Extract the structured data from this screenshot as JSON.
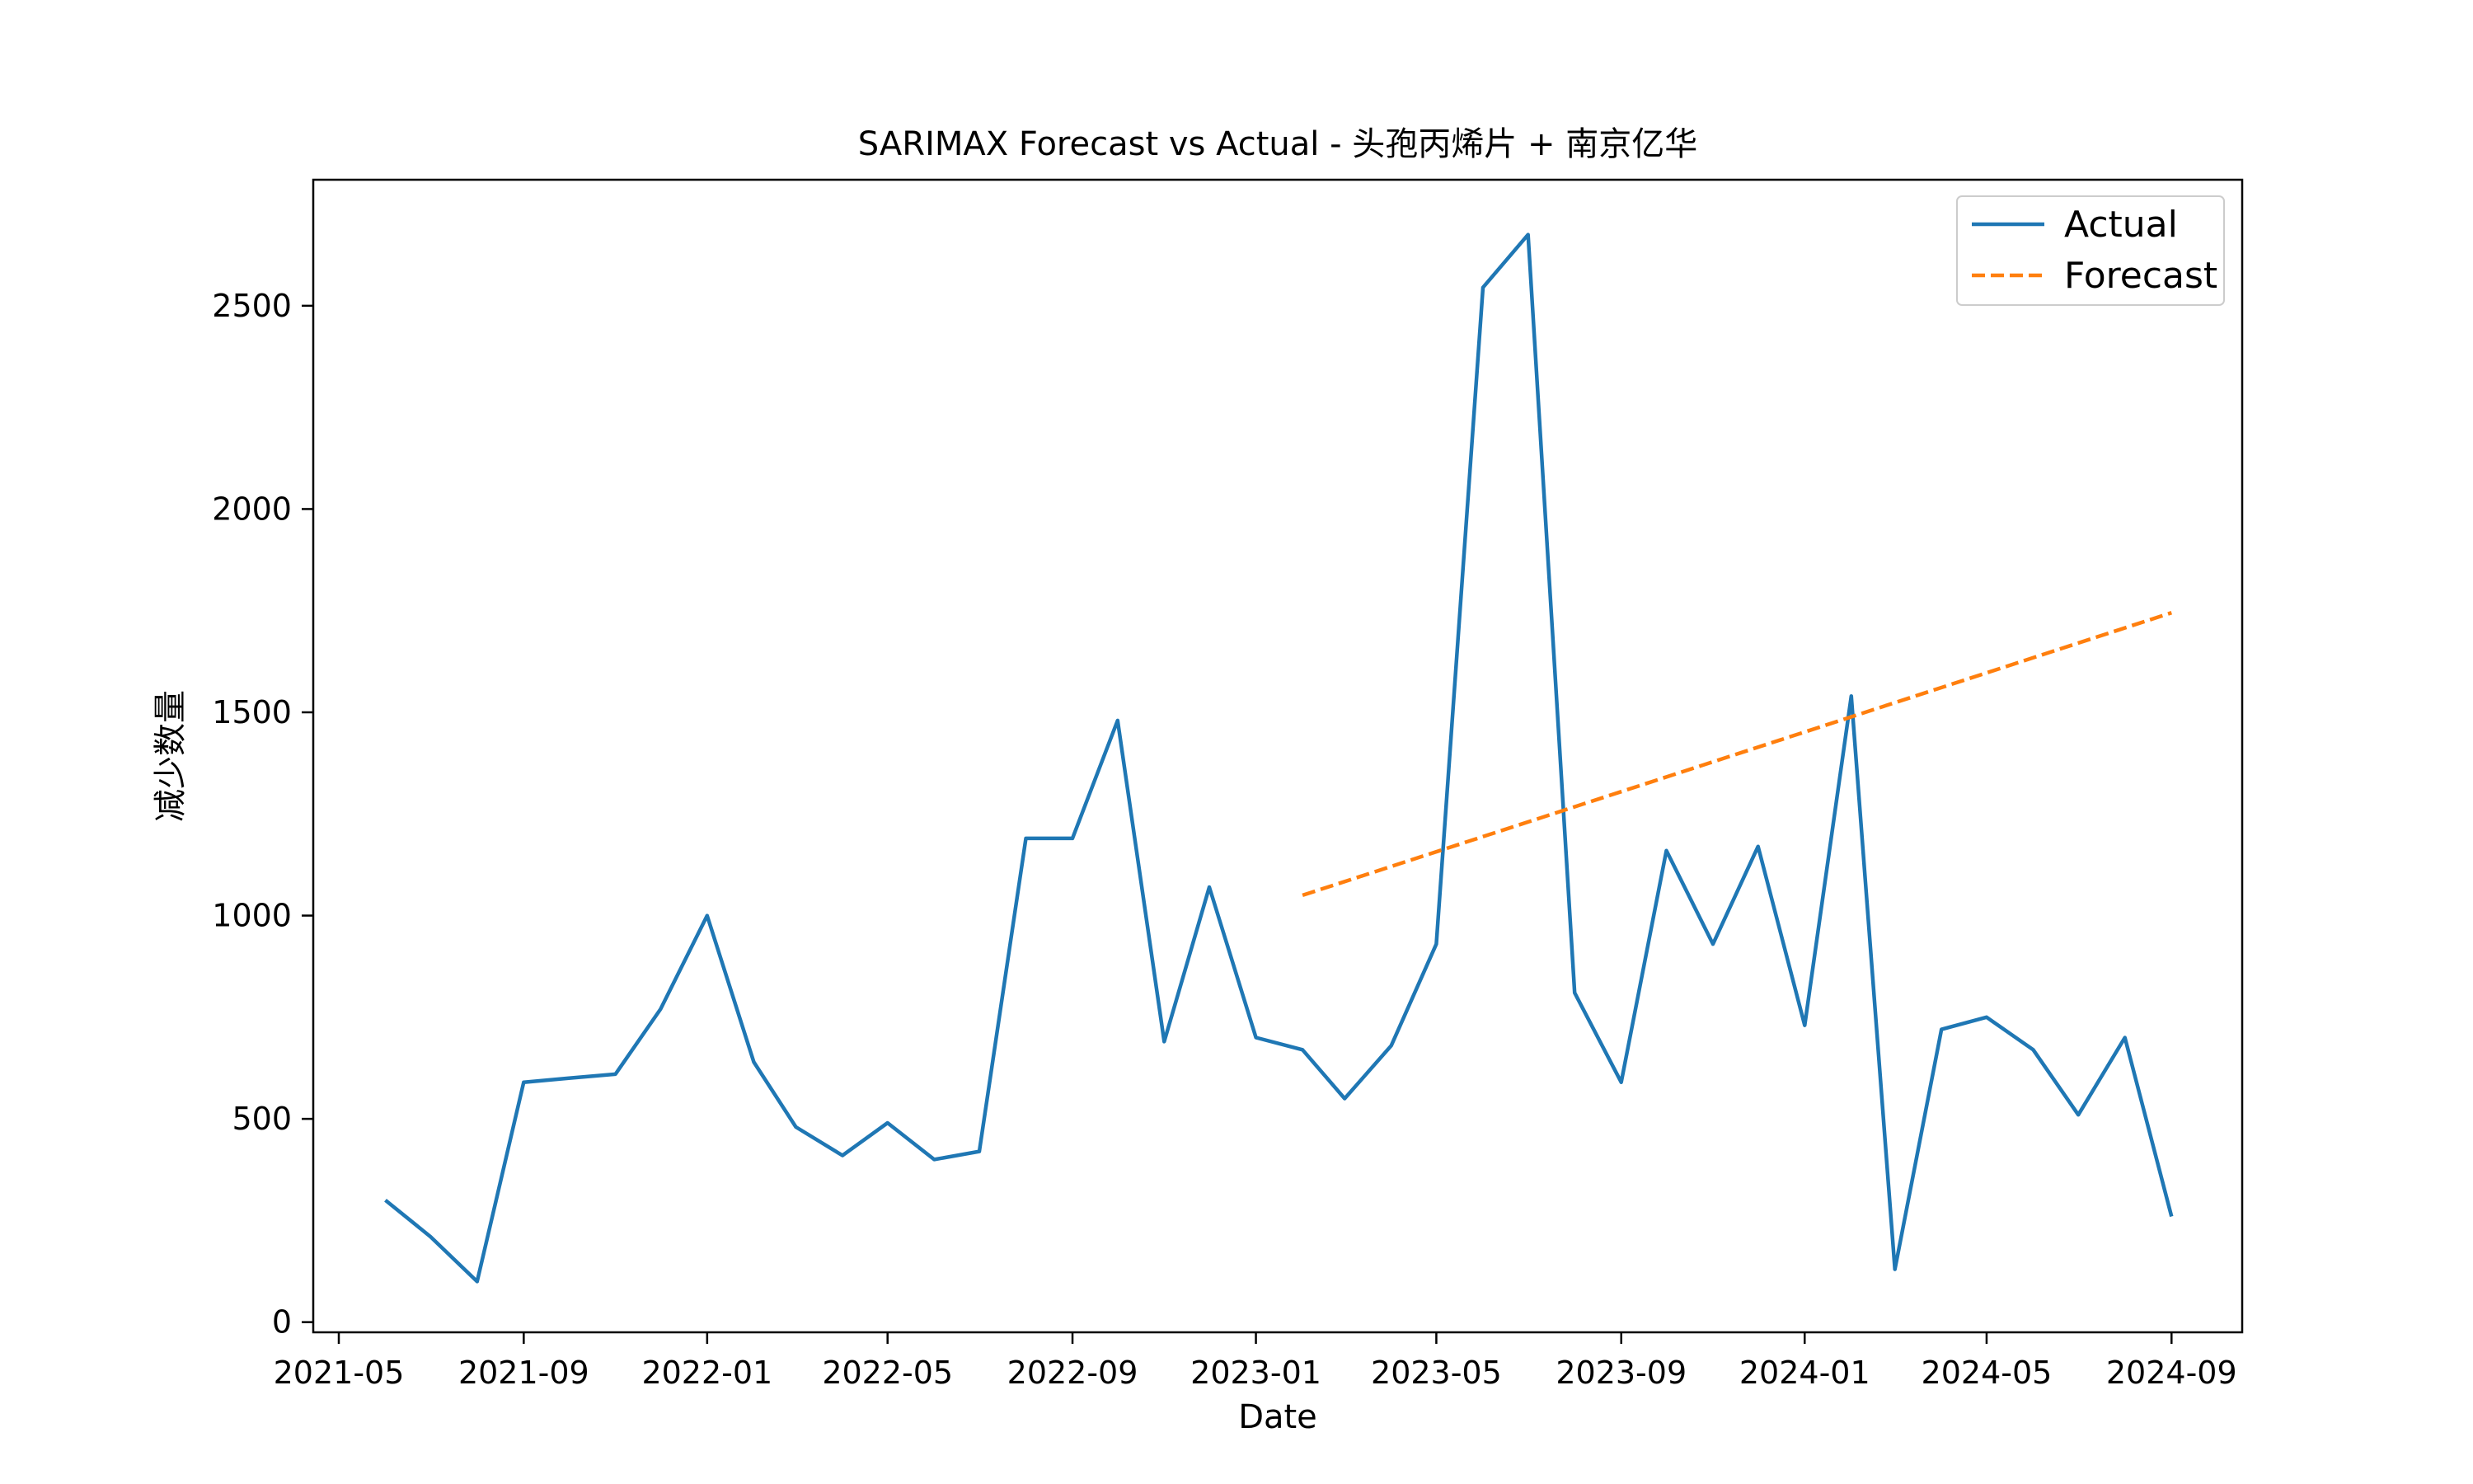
{
  "chart_data": {
    "type": "line",
    "title": "SARIMAX Forecast vs Actual - 头孢丙烯片 + 南京亿华",
    "xlabel": "Date",
    "ylabel": "减少数量",
    "xlim": [
      "2021-04-14",
      "2024-10-18"
    ],
    "ylim": [
      -25,
      2810
    ],
    "xticks": [
      "2021-05",
      "2021-09",
      "2022-01",
      "2022-05",
      "2022-09",
      "2023-01",
      "2023-05",
      "2023-09",
      "2024-01",
      "2024-05",
      "2024-09"
    ],
    "yticks": [
      0,
      500,
      1000,
      1500,
      2000,
      2500
    ],
    "legend": {
      "position": "top-right"
    },
    "series": [
      {
        "name": "Actual",
        "color": "#1f77b4",
        "style": "solid",
        "x": [
          "2021-06-01",
          "2021-07-01",
          "2021-08-01",
          "2021-09-01",
          "2021-10-01",
          "2021-11-01",
          "2021-12-01",
          "2022-01-01",
          "2022-02-01",
          "2022-03-01",
          "2022-04-01",
          "2022-05-01",
          "2022-06-01",
          "2022-07-01",
          "2022-08-01",
          "2022-09-01",
          "2022-10-01",
          "2022-11-01",
          "2022-12-01",
          "2023-01-01",
          "2023-02-01",
          "2023-03-01",
          "2023-04-01",
          "2023-05-01",
          "2023-06-01",
          "2023-07-01",
          "2023-08-01",
          "2023-09-01",
          "2023-10-01",
          "2023-11-01",
          "2023-12-01",
          "2024-01-01",
          "2024-02-01",
          "2024-03-01",
          "2024-04-01",
          "2024-05-01",
          "2024-06-01",
          "2024-07-01",
          "2024-08-01",
          "2024-09-01"
        ],
        "values": [
          300,
          210,
          100,
          590,
          600,
          610,
          770,
          1000,
          640,
          480,
          410,
          490,
          400,
          420,
          1190,
          1190,
          1480,
          690,
          1070,
          700,
          670,
          550,
          680,
          930,
          2545,
          2675,
          810,
          590,
          1160,
          930,
          1170,
          730,
          1540,
          130,
          720,
          750,
          670,
          510,
          700,
          260
        ]
      },
      {
        "name": "Forecast",
        "color": "#ff7f0e",
        "style": "dashed",
        "x": [
          "2023-02-01",
          "2024-09-01"
        ],
        "values": [
          1050,
          1745
        ]
      }
    ]
  }
}
